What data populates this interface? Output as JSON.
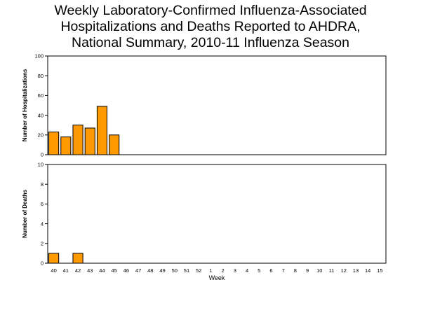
{
  "title_lines": [
    "Weekly Laboratory-Confirmed Influenza-Associated",
    "Hospitalizations and Deaths Reported to AHDRA,",
    "National Summary, 2010-11 Influenza Season"
  ],
  "colors": {
    "bar_fill": "#ff9900",
    "bar_stroke": "#000000",
    "frame": "#000000"
  },
  "chart_data": [
    {
      "type": "bar",
      "title": "",
      "xlabel": "Week",
      "ylabel": "Number of Hospitalizations",
      "ylim": [
        0,
        100
      ],
      "yticks": [
        0,
        20,
        40,
        60,
        80,
        100
      ],
      "categories": [
        "40",
        "41",
        "42",
        "43",
        "44",
        "45",
        "46",
        "47",
        "48",
        "49",
        "50",
        "51",
        "52",
        "1",
        "2",
        "3",
        "4",
        "5",
        "6",
        "7",
        "8",
        "9",
        "10",
        "11",
        "12",
        "13",
        "14",
        "15"
      ],
      "values": [
        23,
        18,
        30,
        27,
        49,
        20,
        null,
        null,
        null,
        null,
        null,
        null,
        null,
        null,
        null,
        null,
        null,
        null,
        null,
        null,
        null,
        null,
        null,
        null,
        null,
        null,
        null,
        null
      ],
      "grid": false
    },
    {
      "type": "bar",
      "title": "",
      "xlabel": "Week",
      "ylabel": "Number of Deaths",
      "ylim": [
        0,
        10
      ],
      "yticks": [
        0,
        2,
        4,
        6,
        8,
        10
      ],
      "categories": [
        "40",
        "41",
        "42",
        "43",
        "44",
        "45",
        "46",
        "47",
        "48",
        "49",
        "50",
        "51",
        "52",
        "1",
        "2",
        "3",
        "4",
        "5",
        "6",
        "7",
        "8",
        "9",
        "10",
        "11",
        "12",
        "13",
        "14",
        "15"
      ],
      "values": [
        1,
        null,
        1,
        null,
        null,
        null,
        null,
        null,
        null,
        null,
        null,
        null,
        null,
        null,
        null,
        null,
        null,
        null,
        null,
        null,
        null,
        null,
        null,
        null,
        null,
        null,
        null,
        null
      ],
      "grid": false
    }
  ]
}
